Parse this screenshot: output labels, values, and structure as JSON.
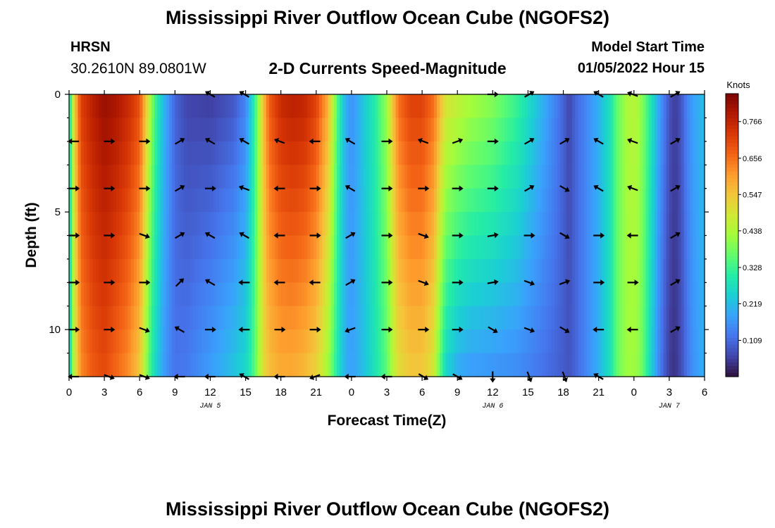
{
  "header": {
    "title": "Mississippi River Outflow Ocean Cube (NGOFS2)",
    "station": "HRSN",
    "coords": "30.2610N  89.0801W",
    "subtitle": "2-D Currents Speed-Magnitude",
    "model_start_label": "Model Start Time",
    "model_start_value": "01/05/2022 Hour 15"
  },
  "footer": {
    "title": "Mississippi River Outflow Ocean Cube (NGOFS2)"
  },
  "colors": {
    "colormap": [
      "#30123b",
      "#4145ab",
      "#4675ed",
      "#39a2fc",
      "#1bcfd4",
      "#24eca6",
      "#61fc6c",
      "#a4fc3b",
      "#d1e834",
      "#f3c63a",
      "#fe9b2d",
      "#f36315",
      "#d93806",
      "#b11901",
      "#7a0402"
    ],
    "arrow": "#000000"
  },
  "chart_data": {
    "type": "heatmap",
    "title": "2-D Currents Speed-Magnitude",
    "xlabel": "Forecast Time(Z)",
    "ylabel": "Depth (ft)",
    "x_ticks": [
      "0",
      "3",
      "6",
      "9",
      "12",
      "15",
      "18",
      "21",
      "0",
      "3",
      "6",
      "9",
      "12",
      "15",
      "18",
      "21",
      "0",
      "3",
      "6"
    ],
    "x_hours": [
      0,
      3,
      6,
      9,
      12,
      15,
      18,
      21,
      24,
      27,
      30,
      33,
      36,
      39,
      42,
      45,
      48,
      51,
      54
    ],
    "xlim": [
      0,
      54
    ],
    "date_labels": [
      {
        "text": "JAN 5",
        "hour": 12
      },
      {
        "text": "JAN 6",
        "hour": 36
      },
      {
        "text": "JAN 7",
        "hour": 51
      }
    ],
    "y_ticks": [
      "0",
      "5",
      "10"
    ],
    "y_tick_values": [
      0,
      5,
      10
    ],
    "ylim": [
      12,
      0
    ],
    "colorbar": {
      "label": "Knots",
      "ticks": [
        "0.766",
        "0.656",
        "0.547",
        "0.438",
        "0.328",
        "0.219",
        "0.109"
      ],
      "tick_values": [
        0.766,
        0.656,
        0.547,
        0.438,
        0.328,
        0.219,
        0.109
      ],
      "range": [
        0,
        0.85
      ]
    },
    "speed_profile": {
      "hours": [
        0,
        0.5,
        1,
        2,
        3,
        4,
        5,
        6,
        6.5,
        7,
        7.5,
        8,
        8.5,
        9,
        10,
        12,
        14,
        15,
        15.5,
        16,
        16.5,
        17,
        18,
        19,
        20,
        21,
        22,
        22.5,
        23,
        23.5,
        24,
        25,
        26,
        27,
        27.5,
        28,
        29,
        30,
        31,
        31.5,
        32,
        33,
        34,
        36,
        38,
        40,
        42,
        42.5,
        43,
        44,
        45,
        46,
        46.5,
        47,
        47.5,
        48,
        48.5,
        49,
        49.5,
        50,
        50.5,
        51,
        51.5,
        52,
        52.5,
        53,
        53.5,
        54
      ],
      "surface_knots": [
        0.24,
        0.55,
        0.72,
        0.78,
        0.82,
        0.8,
        0.76,
        0.7,
        0.56,
        0.4,
        0.3,
        0.22,
        0.16,
        0.1,
        0.06,
        0.05,
        0.08,
        0.14,
        0.25,
        0.38,
        0.55,
        0.68,
        0.76,
        0.78,
        0.77,
        0.72,
        0.58,
        0.44,
        0.3,
        0.2,
        0.16,
        0.23,
        0.3,
        0.42,
        0.55,
        0.66,
        0.72,
        0.72,
        0.66,
        0.58,
        0.5,
        0.47,
        0.44,
        0.4,
        0.33,
        0.22,
        0.1,
        0.06,
        0.1,
        0.15,
        0.2,
        0.28,
        0.36,
        0.4,
        0.44,
        0.45,
        0.42,
        0.36,
        0.28,
        0.2,
        0.14,
        0.08,
        0.05,
        0.08,
        0.14,
        0.18,
        0.2,
        0.22
      ],
      "bottom_knots": [
        0.22,
        0.48,
        0.62,
        0.68,
        0.7,
        0.66,
        0.62,
        0.54,
        0.42,
        0.3,
        0.24,
        0.18,
        0.15,
        0.12,
        0.13,
        0.18,
        0.23,
        0.26,
        0.32,
        0.4,
        0.5,
        0.55,
        0.58,
        0.58,
        0.56,
        0.52,
        0.42,
        0.34,
        0.26,
        0.2,
        0.18,
        0.22,
        0.28,
        0.36,
        0.44,
        0.5,
        0.54,
        0.54,
        0.48,
        0.36,
        0.25,
        0.19,
        0.17,
        0.16,
        0.15,
        0.12,
        0.09,
        0.08,
        0.1,
        0.15,
        0.2,
        0.28,
        0.36,
        0.4,
        0.42,
        0.42,
        0.4,
        0.33,
        0.24,
        0.16,
        0.1,
        0.05,
        0.04,
        0.07,
        0.12,
        0.16,
        0.18,
        0.2
      ]
    },
    "vectors": {
      "hours": [
        0.4,
        3.4,
        6.4,
        9.4,
        12.0,
        14.9,
        17.9,
        20.9,
        23.9,
        27.0,
        30.1,
        33.0,
        36.0,
        39.1,
        42.1,
        45.0,
        47.9,
        51.5
      ],
      "depths_ft": [
        0,
        2,
        4,
        6,
        8,
        10,
        12
      ],
      "angles_deg": [
        [
          null,
          null,
          null,
          null,
          150,
          150,
          null,
          null,
          null,
          null,
          null,
          null,
          0,
          30,
          null,
          150,
          160,
          30
        ],
        [
          180,
          0,
          0,
          30,
          150,
          150,
          160,
          180,
          150,
          0,
          160,
          20,
          0,
          30,
          30,
          150,
          160,
          30
        ],
        [
          0,
          0,
          0,
          30,
          0,
          160,
          180,
          0,
          150,
          0,
          0,
          0,
          0,
          30,
          330,
          150,
          160,
          30
        ],
        [
          0,
          0,
          340,
          30,
          150,
          150,
          180,
          0,
          30,
          0,
          340,
          0,
          10,
          0,
          330,
          0,
          180,
          30
        ],
        [
          0,
          0,
          0,
          45,
          150,
          180,
          180,
          180,
          30,
          0,
          340,
          0,
          10,
          340,
          20,
          0,
          0,
          30
        ],
        [
          0,
          0,
          340,
          150,
          0,
          180,
          0,
          0,
          200,
          0,
          0,
          0,
          330,
          340,
          330,
          180,
          180,
          30
        ],
        [
          180,
          340,
          340,
          180,
          180,
          150,
          180,
          200,
          180,
          180,
          330,
          330,
          270,
          290,
          290,
          150,
          null,
          null
        ]
      ]
    }
  }
}
